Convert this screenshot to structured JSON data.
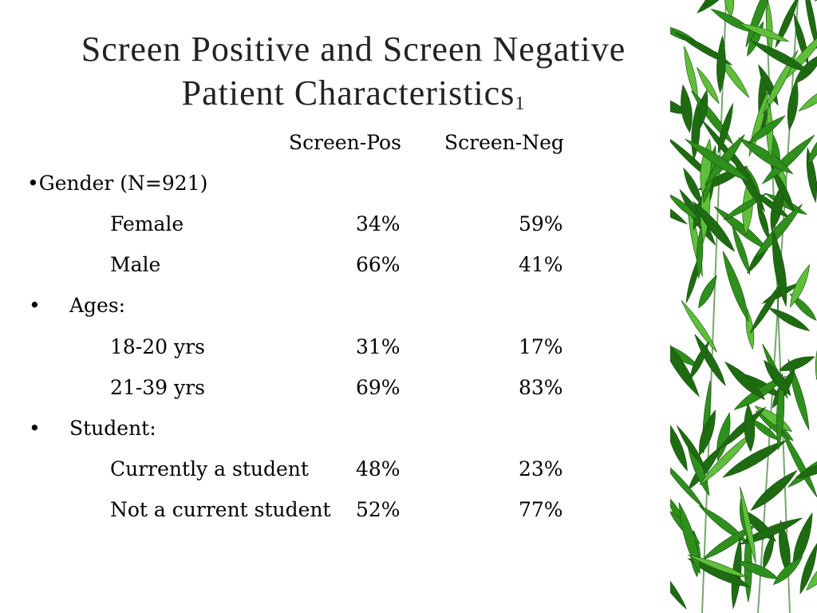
{
  "slide": {
    "title_line1": "Screen Positive and Screen Negative",
    "title_line2": "Patient Characteristics",
    "title_subscript": "1",
    "columns": {
      "pos": "Screen-Pos",
      "neg": "Screen-Neg"
    },
    "gender": {
      "heading": "•Gender (N=921)",
      "rows": [
        {
          "label": "Female",
          "pos": "34%",
          "neg": "59%"
        },
        {
          "label": "Male",
          "pos": "66%",
          "neg": "41%"
        }
      ]
    },
    "ages": {
      "bullet": "•",
      "heading": "Ages:",
      "rows": [
        {
          "label": "18-20 yrs",
          "pos": "31%",
          "neg": "17%"
        },
        {
          "label": "21-39 yrs",
          "pos": "69%",
          "neg": "83%"
        }
      ]
    },
    "student": {
      "bullet": "•",
      "heading": "Student:",
      "rows": [
        {
          "label": "Currently a student",
          "pos": "48%",
          "neg": "23%"
        },
        {
          "label": "Not a current student",
          "pos": "52%",
          "neg": "77%"
        }
      ]
    },
    "colors": {
      "leaf_dark": "#1f6b12",
      "leaf_mid": "#2f8f1c",
      "leaf_light": "#5fbf3a"
    }
  }
}
